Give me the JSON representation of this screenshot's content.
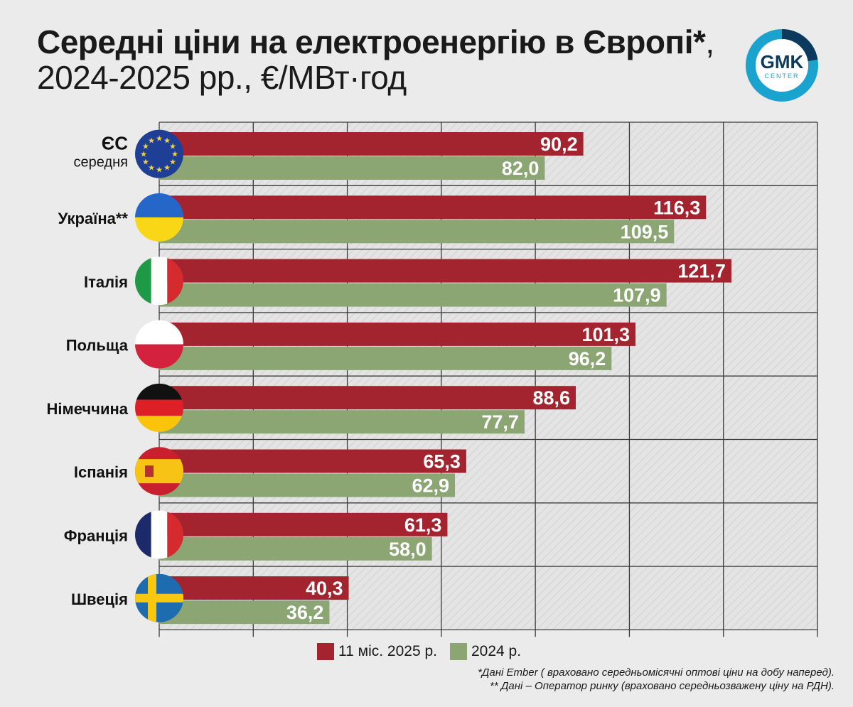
{
  "title_bold": "Середні ціни на електроенергію в Європі*",
  "title_rest": ", 2024-2025 рр., €/МВт·год",
  "logo": {
    "text_main": "GMK",
    "text_sub": "CENTER"
  },
  "colors": {
    "series_2025": "#a3242f",
    "series_2024": "#8ba673",
    "logo_light": "#1aa3cf",
    "logo_dark": "#0b3a5c"
  },
  "chart_data": {
    "type": "bar",
    "orientation": "horizontal",
    "categories": [
      {
        "label": "ЄС",
        "sublabel": "середня",
        "flag": "eu-flag-icon"
      },
      {
        "label": "Україна**",
        "flag": "ukraine-flag-icon"
      },
      {
        "label": "Італія",
        "flag": "italy-flag-icon"
      },
      {
        "label": "Польща",
        "flag": "poland-flag-icon"
      },
      {
        "label": "Німеччина",
        "flag": "germany-flag-icon"
      },
      {
        "label": "Іспанія",
        "flag": "spain-flag-icon"
      },
      {
        "label": "Франція",
        "flag": "france-flag-icon"
      },
      {
        "label": "Швеція",
        "flag": "sweden-flag-icon"
      }
    ],
    "series": [
      {
        "name": "11 міс. 2025 р.",
        "values": [
          90.2,
          116.3,
          121.7,
          101.3,
          88.6,
          65.3,
          61.3,
          40.3
        ],
        "labels": [
          "90,2",
          "116,3",
          "121,7",
          "101,3",
          "88,6",
          "65,3",
          "61,3",
          "40,3"
        ]
      },
      {
        "name": "2024 р.",
        "values": [
          82.0,
          109.5,
          107.9,
          96.2,
          77.7,
          62.9,
          58.0,
          36.2
        ],
        "labels": [
          "82,0",
          "109,5",
          "107,9",
          "96,2",
          "77,7",
          "62,9",
          "58,0",
          "36,2"
        ]
      }
    ],
    "xlim": [
      0,
      140
    ],
    "grid_step": 20,
    "grid": true,
    "legend_position": "bottom"
  },
  "footnotes": [
    "*Дані Ember ( враховано середньомісячні оптові ціни на добу наперед).",
    "** Дані – Оператор ринку (враховано середньозважену ціну на РДН)."
  ]
}
